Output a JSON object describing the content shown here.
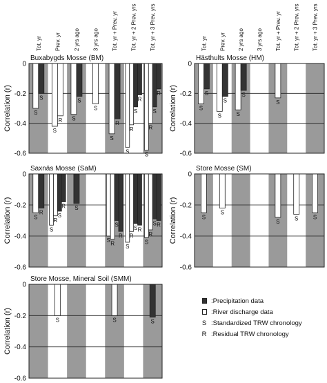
{
  "categories": [
    "Tot. yr",
    "Prev. yr",
    "2 yrs ago",
    "3 yrs ago",
    "Tot. yr + Prev. yr",
    "Tot. yr + 2 Prev. yrs",
    "Tot. yr + 3 Prev. yrs"
  ],
  "legend": {
    "precipitation": "Precipitation data",
    "river": "River discharge data",
    "s_label": "Standardized TRW chronology",
    "r_label": "Residual TRW chronology",
    "prefix": ": "
  },
  "colors": {
    "band": "#9a9a9a",
    "precip": "#333333",
    "river": "#ffffff",
    "frame": "#222222"
  },
  "chart_data": [
    {
      "type": "bar",
      "title": "Buxabygds Mosse (BM)",
      "ylabel": "Correlation (r)",
      "ylim": [
        -0.6,
        0
      ],
      "yticks": [
        "0",
        "-0.2",
        "-0.4",
        "-0.6"
      ],
      "grid": true,
      "bars": [
        {
          "cat": 0,
          "kind": "river",
          "chron": "S",
          "value": -0.3
        },
        {
          "cat": 0,
          "kind": "precip",
          "chron": "S",
          "value": -0.2
        },
        {
          "cat": 1,
          "kind": "river",
          "chron": "S",
          "value": -0.42
        },
        {
          "cat": 1,
          "kind": "river",
          "chron": "R",
          "value": -0.35
        },
        {
          "cat": 2,
          "kind": "river",
          "chron": "S",
          "value": -0.34
        },
        {
          "cat": 2,
          "kind": "precip",
          "chron": "S",
          "value": -0.22
        },
        {
          "cat": 3,
          "kind": "river",
          "chron": "S",
          "value": -0.27
        },
        {
          "cat": 4,
          "kind": "river",
          "chron": "S",
          "value": -0.47
        },
        {
          "cat": 4,
          "kind": "precip",
          "chron": "R",
          "value": -0.37
        },
        {
          "cat": 5,
          "kind": "river",
          "chron": "S",
          "value": -0.56
        },
        {
          "cat": 5,
          "kind": "river",
          "chron": "R",
          "value": -0.41
        },
        {
          "cat": 5,
          "kind": "precip",
          "chron": "S",
          "value": -0.29
        },
        {
          "cat": 5,
          "kind": "precip",
          "chron": "R",
          "value": -0.21
        },
        {
          "cat": 6,
          "kind": "river",
          "chron": "S",
          "value": -0.58
        },
        {
          "cat": 6,
          "kind": "river",
          "chron": "R",
          "value": -0.4
        },
        {
          "cat": 6,
          "kind": "precip",
          "chron": "S",
          "value": -0.29
        },
        {
          "cat": 6,
          "kind": "precip",
          "chron": "R",
          "value": -0.17
        }
      ]
    },
    {
      "type": "bar",
      "title": "Hästhults Mosse (HM)",
      "ylabel": "Correlation (r)",
      "ylim": [
        -0.6,
        0
      ],
      "yticks": [
        "0",
        "-0.2",
        "-0.4",
        "-0.6"
      ],
      "grid": true,
      "bars": [
        {
          "cat": 0,
          "kind": "river",
          "chron": "S",
          "value": -0.27
        },
        {
          "cat": 0,
          "kind": "precip",
          "chron": "S",
          "value": -0.17
        },
        {
          "cat": 1,
          "kind": "river",
          "chron": "S",
          "value": -0.32
        },
        {
          "cat": 1,
          "kind": "precip",
          "chron": "S",
          "value": -0.22
        },
        {
          "cat": 2,
          "kind": "river",
          "chron": "S",
          "value": -0.31
        },
        {
          "cat": 2,
          "kind": "precip",
          "chron": "S",
          "value": -0.18
        },
        {
          "cat": 4,
          "kind": "river",
          "chron": "S",
          "value": -0.23
        }
      ]
    },
    {
      "type": "bar",
      "title": "Saxnäs Mosse (SaM)",
      "ylabel": "Correlation (r)",
      "ylim": [
        -0.6,
        0
      ],
      "yticks": [
        "0",
        "-0.2",
        "-0.4",
        "-0.6"
      ],
      "grid": true,
      "bars": [
        {
          "cat": 0,
          "kind": "river",
          "chron": "S",
          "value": -0.25
        },
        {
          "cat": 0,
          "kind": "precip",
          "chron": "R",
          "value": -0.22
        },
        {
          "cat": 1,
          "kind": "river",
          "chron": "S",
          "value": -0.33
        },
        {
          "cat": 1,
          "kind": "river",
          "chron": "R",
          "value": -0.27
        },
        {
          "cat": 1,
          "kind": "precip",
          "chron": "S",
          "value": -0.24
        },
        {
          "cat": 1,
          "kind": "precip",
          "chron": "R",
          "value": -0.18
        },
        {
          "cat": 2,
          "kind": "precip",
          "chron": "S",
          "value": -0.19
        },
        {
          "cat": 4,
          "kind": "river",
          "chron": "S",
          "value": -0.4
        },
        {
          "cat": 4,
          "kind": "river",
          "chron": "R",
          "value": -0.42
        },
        {
          "cat": 4,
          "kind": "precip",
          "chron": "S",
          "value": -0.3
        },
        {
          "cat": 4,
          "kind": "precip",
          "chron": "R",
          "value": -0.37
        },
        {
          "cat": 5,
          "kind": "river",
          "chron": "S",
          "value": -0.44
        },
        {
          "cat": 5,
          "kind": "river",
          "chron": "R",
          "value": -0.37
        },
        {
          "cat": 5,
          "kind": "precip",
          "chron": "S",
          "value": -0.32
        },
        {
          "cat": 5,
          "kind": "precip",
          "chron": "R",
          "value": -0.33
        },
        {
          "cat": 6,
          "kind": "river",
          "chron": "S",
          "value": -0.41
        },
        {
          "cat": 6,
          "kind": "river",
          "chron": "R",
          "value": -0.36
        },
        {
          "cat": 6,
          "kind": "precip",
          "chron": "S",
          "value": -0.29
        },
        {
          "cat": 6,
          "kind": "precip",
          "chron": "R",
          "value": -0.3
        }
      ]
    },
    {
      "type": "bar",
      "title": "Store Mosse (SM)",
      "ylabel": "Correlation (r)",
      "ylim": [
        -0.6,
        0
      ],
      "yticks": [
        "0",
        "-0.2",
        "-0.4",
        "-0.6"
      ],
      "grid": true,
      "bars": [
        {
          "cat": 0,
          "kind": "river",
          "chron": "S",
          "value": -0.25
        },
        {
          "cat": 1,
          "kind": "river",
          "chron": "S",
          "value": -0.22
        },
        {
          "cat": 4,
          "kind": "river",
          "chron": "S",
          "value": -0.28
        },
        {
          "cat": 5,
          "kind": "river",
          "chron": "S",
          "value": -0.26
        },
        {
          "cat": 6,
          "kind": "river",
          "chron": "S",
          "value": -0.25
        }
      ]
    },
    {
      "type": "bar",
      "title": "Store Mosse, Mineral Soil (SMM)",
      "ylabel": "Correlation (r)",
      "ylim": [
        -0.6,
        0
      ],
      "yticks": [
        "0",
        "-0.2",
        "-0.4",
        "-0.6"
      ],
      "grid": true,
      "bars": [
        {
          "cat": 1,
          "kind": "river",
          "chron": "S",
          "value": -0.2
        },
        {
          "cat": 4,
          "kind": "river",
          "chron": "S",
          "value": -0.2
        },
        {
          "cat": 6,
          "kind": "precip",
          "chron": "S",
          "value": -0.21
        }
      ]
    }
  ]
}
